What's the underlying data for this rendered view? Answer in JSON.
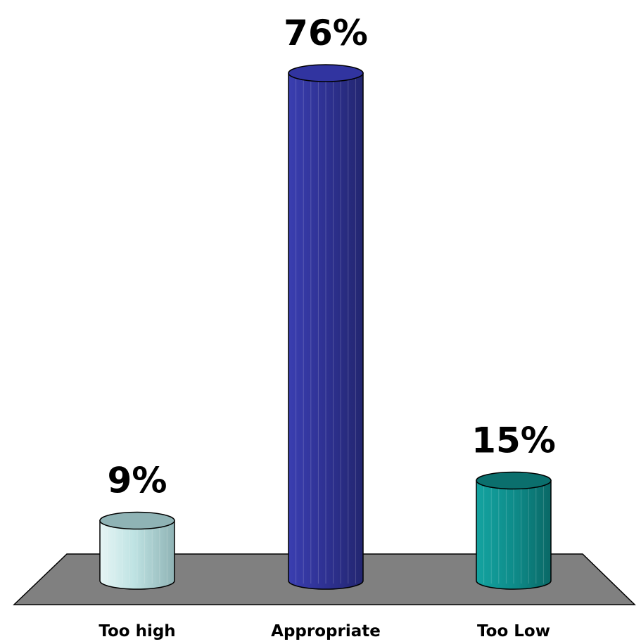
{
  "chart_data": {
    "type": "bar",
    "style": "3d-cylinder",
    "categories": [
      "Too high",
      "Appropriate",
      "Too Low"
    ],
    "values": [
      9,
      76,
      15
    ],
    "value_labels": [
      "9%",
      "76%",
      "15%"
    ],
    "unit": "%",
    "ylim": [
      0,
      80
    ],
    "grid": false,
    "legend": "none",
    "colors": {
      "bars": [
        "#bfe3e3",
        "#2e3192",
        "#0e8c8a"
      ],
      "bar_tops": [
        "#8fb3b5",
        "#3134a0",
        "#0b6f6d"
      ],
      "floor": "#808080",
      "outline": "#000000"
    }
  }
}
